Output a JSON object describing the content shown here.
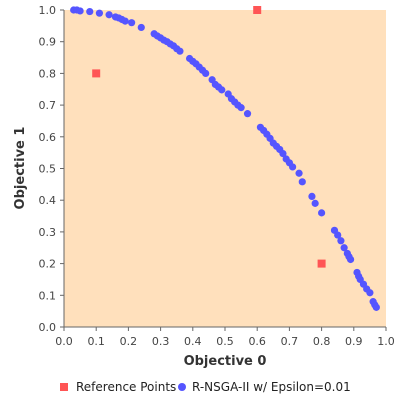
{
  "chart_data": {
    "type": "scatter",
    "xlabel": "Objective 0",
    "ylabel": "Objective 1",
    "xlim": [
      0,
      1
    ],
    "ylim": [
      0,
      1
    ],
    "x_ticks": [
      "0.0",
      "0.1",
      "0.2",
      "0.3",
      "0.4",
      "0.5",
      "0.6",
      "0.7",
      "0.8",
      "0.9",
      "1.0"
    ],
    "y_ticks": [
      "0.0",
      "0.1",
      "0.2",
      "0.3",
      "0.4",
      "0.5",
      "0.6",
      "0.7",
      "0.8",
      "0.9",
      "1.0"
    ],
    "grid": false,
    "legend_position": "bottom",
    "series": [
      {
        "name": "Reference Points",
        "marker": "square",
        "color": "#ff5555",
        "points": [
          [
            0.1,
            0.8
          ],
          [
            0.6,
            1.0
          ],
          [
            0.8,
            0.2
          ]
        ]
      },
      {
        "name": "R-NSGA-II w/ Epsilon=0.01",
        "marker": "circle",
        "color": "#5555ff",
        "points": [
          [
            0.03,
            1.0
          ],
          [
            0.04,
            1.0
          ],
          [
            0.05,
            0.997
          ],
          [
            0.08,
            0.995
          ],
          [
            0.11,
            0.99
          ],
          [
            0.14,
            0.985
          ],
          [
            0.16,
            0.978
          ],
          [
            0.17,
            0.975
          ],
          [
            0.18,
            0.97
          ],
          [
            0.19,
            0.965
          ],
          [
            0.21,
            0.96
          ],
          [
            0.24,
            0.945
          ],
          [
            0.28,
            0.925
          ],
          [
            0.29,
            0.918
          ],
          [
            0.3,
            0.912
          ],
          [
            0.31,
            0.905
          ],
          [
            0.32,
            0.9
          ],
          [
            0.33,
            0.893
          ],
          [
            0.34,
            0.887
          ],
          [
            0.35,
            0.878
          ],
          [
            0.36,
            0.87
          ],
          [
            0.39,
            0.847
          ],
          [
            0.4,
            0.838
          ],
          [
            0.41,
            0.83
          ],
          [
            0.42,
            0.82
          ],
          [
            0.43,
            0.81
          ],
          [
            0.44,
            0.8
          ],
          [
            0.46,
            0.78
          ],
          [
            0.47,
            0.765
          ],
          [
            0.48,
            0.757
          ],
          [
            0.49,
            0.748
          ],
          [
            0.51,
            0.735
          ],
          [
            0.52,
            0.72
          ],
          [
            0.53,
            0.71
          ],
          [
            0.54,
            0.7
          ],
          [
            0.55,
            0.692
          ],
          [
            0.57,
            0.673
          ],
          [
            0.61,
            0.63
          ],
          [
            0.62,
            0.62
          ],
          [
            0.63,
            0.608
          ],
          [
            0.64,
            0.595
          ],
          [
            0.65,
            0.58
          ],
          [
            0.66,
            0.57
          ],
          [
            0.67,
            0.56
          ],
          [
            0.68,
            0.547
          ],
          [
            0.69,
            0.53
          ],
          [
            0.7,
            0.518
          ],
          [
            0.71,
            0.505
          ],
          [
            0.73,
            0.485
          ],
          [
            0.74,
            0.458
          ],
          [
            0.77,
            0.412
          ],
          [
            0.78,
            0.39
          ],
          [
            0.8,
            0.36
          ],
          [
            0.84,
            0.305
          ],
          [
            0.85,
            0.29
          ],
          [
            0.86,
            0.272
          ],
          [
            0.87,
            0.25
          ],
          [
            0.88,
            0.232
          ],
          [
            0.885,
            0.222
          ],
          [
            0.89,
            0.213
          ],
          [
            0.91,
            0.172
          ],
          [
            0.915,
            0.16
          ],
          [
            0.92,
            0.15
          ],
          [
            0.93,
            0.135
          ],
          [
            0.94,
            0.12
          ],
          [
            0.95,
            0.108
          ],
          [
            0.96,
            0.08
          ],
          [
            0.965,
            0.07
          ],
          [
            0.97,
            0.062
          ]
        ]
      }
    ]
  }
}
